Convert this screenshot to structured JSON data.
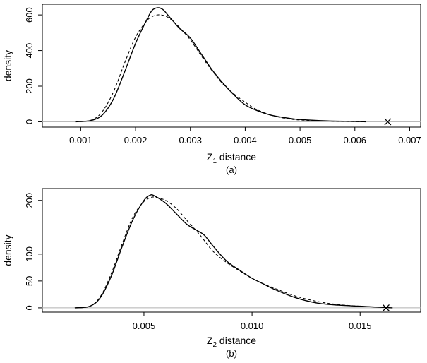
{
  "chart_data": [
    {
      "type": "line",
      "panel_label": "(a)",
      "xlabel_main": "Z",
      "xlabel_sub": "1",
      "xlabel_rest": " distance",
      "ylabel": "density",
      "xlim": [
        0.0003,
        0.0072
      ],
      "ylim": [
        -30,
        660
      ],
      "xticks": [
        0.001,
        0.002,
        0.003,
        0.004,
        0.005,
        0.006,
        0.007
      ],
      "xtick_labels": [
        "0.001",
        "0.002",
        "0.003",
        "0.004",
        "0.005",
        "0.006",
        "0.007"
      ],
      "yticks": [
        0,
        200,
        400,
        600
      ],
      "ytick_labels": [
        "0",
        "200",
        "400",
        "600"
      ],
      "baseline_y": 0,
      "marker_point": {
        "x": 0.0066,
        "y": 0
      },
      "series": [
        {
          "style": "solid",
          "x": [
            0.0009,
            0.0012,
            0.0014,
            0.0016,
            0.0018,
            0.002,
            0.0022,
            0.0023,
            0.0024,
            0.0025,
            0.0026,
            0.0027,
            0.0028,
            0.003,
            0.0032,
            0.0034,
            0.0036,
            0.0038,
            0.004,
            0.0042,
            0.0045,
            0.0048,
            0.005,
            0.0055,
            0.006,
            0.0062
          ],
          "y": [
            0,
            8,
            40,
            130,
            280,
            440,
            570,
            625,
            640,
            630,
            595,
            560,
            525,
            470,
            380,
            290,
            215,
            150,
            95,
            65,
            35,
            20,
            13,
            5,
            2,
            0
          ]
        },
        {
          "style": "dashed",
          "x": [
            0.0009,
            0.0012,
            0.0014,
            0.0016,
            0.0018,
            0.002,
            0.0022,
            0.0023,
            0.0024,
            0.0025,
            0.0026,
            0.0027,
            0.0028,
            0.003,
            0.0032,
            0.0034,
            0.0036,
            0.0038,
            0.004,
            0.0042,
            0.0045,
            0.0048,
            0.005,
            0.0055,
            0.006,
            0.0062
          ],
          "y": [
            0,
            10,
            60,
            170,
            330,
            475,
            565,
            590,
            600,
            598,
            585,
            560,
            530,
            460,
            370,
            285,
            210,
            155,
            110,
            70,
            35,
            16,
            10,
            4,
            1,
            0
          ]
        }
      ]
    },
    {
      "type": "line",
      "panel_label": "(b)",
      "xlabel_main": "Z",
      "xlabel_sub": "2",
      "xlabel_rest": " distance",
      "ylabel": "density",
      "xlim": [
        0.0003,
        0.0178
      ],
      "ylim": [
        -8,
        222
      ],
      "xticks": [
        0.005,
        0.01,
        0.015
      ],
      "xtick_labels": [
        "0.005",
        "0.010",
        "0.015"
      ],
      "yticks": [
        0,
        50,
        100,
        200
      ],
      "ytick_labels": [
        "0",
        "50",
        "100",
        "200"
      ],
      "baseline_y": 0,
      "marker_point": {
        "x": 0.0162,
        "y": 0
      },
      "series": [
        {
          "style": "solid",
          "x": [
            0.0018,
            0.0025,
            0.003,
            0.0035,
            0.004,
            0.0045,
            0.005,
            0.0053,
            0.0055,
            0.006,
            0.0065,
            0.007,
            0.0075,
            0.0078,
            0.0082,
            0.0088,
            0.0095,
            0.01,
            0.0105,
            0.011,
            0.012,
            0.013,
            0.014,
            0.015,
            0.016,
            0.0165
          ],
          "y": [
            0,
            3,
            20,
            60,
            115,
            165,
            200,
            210,
            208,
            195,
            175,
            155,
            143,
            135,
            115,
            88,
            68,
            55,
            45,
            35,
            19,
            9,
            5,
            3,
            1,
            0
          ]
        },
        {
          "style": "dashed",
          "x": [
            0.0018,
            0.0025,
            0.003,
            0.0035,
            0.004,
            0.0045,
            0.005,
            0.0053,
            0.0055,
            0.006,
            0.0065,
            0.007,
            0.0075,
            0.0078,
            0.0082,
            0.0088,
            0.0095,
            0.01,
            0.0105,
            0.011,
            0.012,
            0.013,
            0.014,
            0.015,
            0.016,
            0.0165
          ],
          "y": [
            0,
            3,
            22,
            65,
            120,
            170,
            198,
            205,
            206,
            200,
            185,
            162,
            140,
            125,
            105,
            85,
            67,
            55,
            45,
            37,
            22,
            12,
            6,
            3,
            1,
            0
          ]
        }
      ]
    }
  ]
}
